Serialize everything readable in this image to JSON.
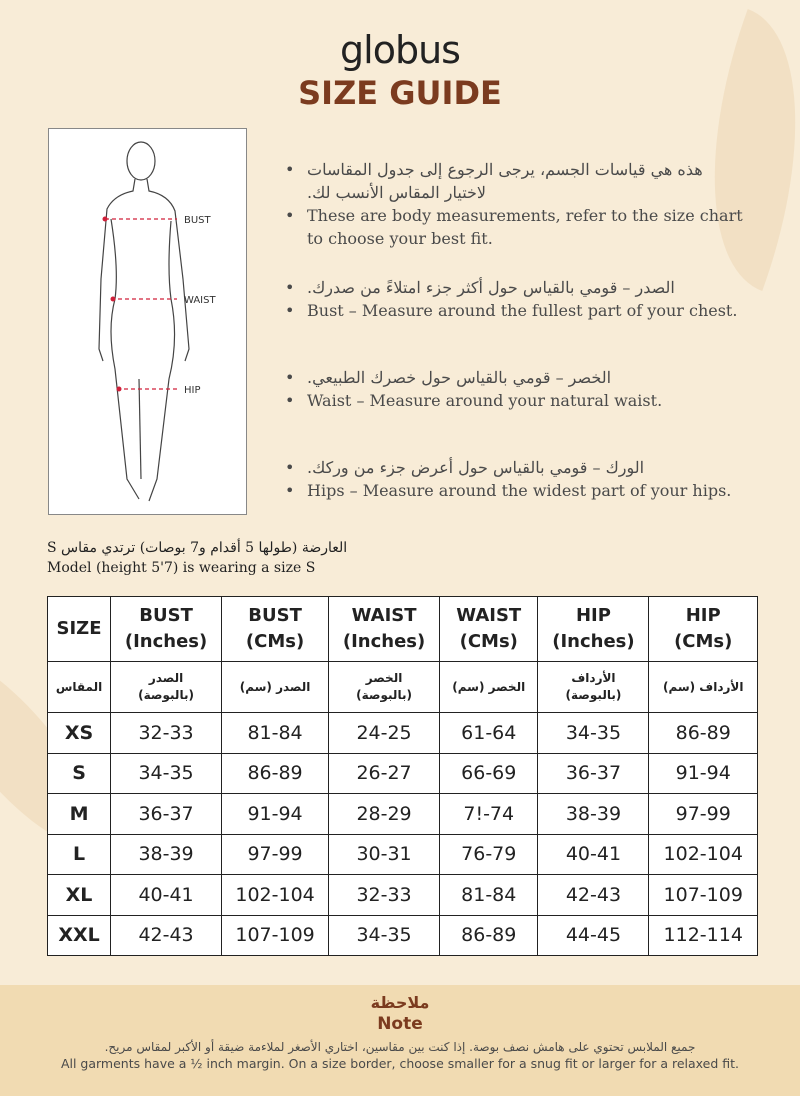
{
  "brand": "globus",
  "title": "SIZE GUIDE",
  "figure": {
    "labels": [
      "BUST",
      "WAIST",
      "HIP"
    ]
  },
  "bullets": [
    {
      "ar": "هذه هي قياسات الجسم، يرجى الرجوع إلى جدول المقاسات لاختيار المقاس الأنسب لك.",
      "en": "These are body measurements, refer to the size chart to choose your best fit."
    },
    {
      "ar": "الصدر – قومي بالقياس حول أكثر جزء امتلاءً من صدرك.",
      "en": "Bust – Measure around the fullest part of your chest."
    },
    {
      "ar": "الخصر – قومي بالقياس حول خصرك الطبيعي.",
      "en": "Waist – Measure around your natural waist."
    },
    {
      "ar": "الورك – قومي بالقياس حول أعرض جزء من وركك.",
      "en": "Hips – Measure around the widest part of your hips."
    }
  ],
  "model": {
    "ar": "العارضة (طولها 5 أقدام و7 بوصات) ترتدي مقاس S",
    "en": "Model (height 5'7) is wearing a size S"
  },
  "table": {
    "headers": [
      [
        "SIZE",
        ""
      ],
      [
        "BUST",
        "(Inches)"
      ],
      [
        "BUST",
        "(CMs)"
      ],
      [
        "WAIST",
        "(Inches)"
      ],
      [
        "WAIST",
        "(CMs)"
      ],
      [
        "HIP",
        "(Inches)"
      ],
      [
        "HIP",
        "(CMs)"
      ]
    ],
    "headers_ar": [
      [
        "المقاس",
        ""
      ],
      [
        "الصدر",
        "(بالبوصة)"
      ],
      [
        "الصدر (سم)",
        ""
      ],
      [
        "الخصر",
        "(بالبوصة)"
      ],
      [
        "الخصر (سم)",
        ""
      ],
      [
        "الأرداف",
        "(بالبوصة)"
      ],
      [
        "الأرداف (سم)",
        ""
      ]
    ],
    "rows": [
      [
        "XS",
        "32-33",
        "81-84",
        "24-25",
        "61-64",
        "34-35",
        "86-89"
      ],
      [
        "S",
        "34-35",
        "86-89",
        "26-27",
        "66-69",
        "36-37",
        "91-94"
      ],
      [
        "M",
        "36-37",
        "91-94",
        "28-29",
        "7!-74",
        "38-39",
        "97-99"
      ],
      [
        "L",
        "38-39",
        "97-99",
        "30-31",
        "76-79",
        "40-41",
        "102-104"
      ],
      [
        "XL",
        "40-41",
        "102-104",
        "32-33",
        "81-84",
        "42-43",
        "107-109"
      ],
      [
        "XXL",
        "42-43",
        "107-109",
        "34-35",
        "86-89",
        "44-45",
        "112-114"
      ]
    ]
  },
  "note": {
    "title_ar": "ملاحظة",
    "title": "Note",
    "text_ar": "جميع الملابس تحتوي على هامش نصف بوصة. إذا كنت بين مقاسين، اختاري الأصغر لملاءمة ضيقة أو الأكبر لمقاس مريح.",
    "text": "All garments have a ½ inch margin. On a size border, choose smaller for a snug fit or larger for a relaxed fit."
  },
  "colors": {
    "background": "#f8ecd7",
    "accent": "#7b3b1f",
    "note_band": "#f1dbb2",
    "marker": "#d0203a"
  }
}
